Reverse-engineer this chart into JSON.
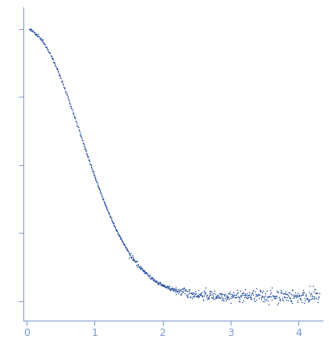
{
  "title": "",
  "xlabel": "",
  "ylabel": "",
  "xlim": [
    -0.05,
    4.35
  ],
  "dot_color": "#2a52a0",
  "dot_size": 1.2,
  "axis_color": "#7799cc",
  "tick_color": "#7799cc",
  "background_color": "#ffffff",
  "xticks": [
    0,
    1,
    2,
    3,
    4
  ],
  "seed": 42
}
